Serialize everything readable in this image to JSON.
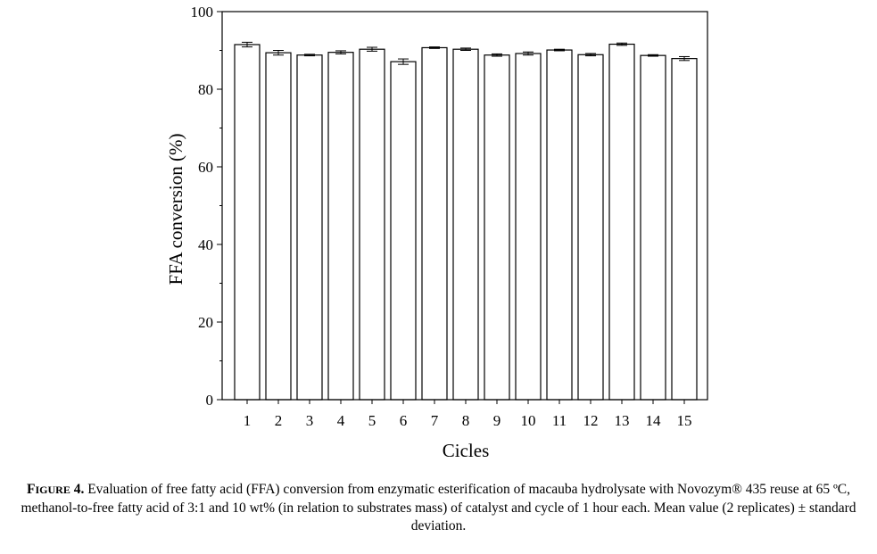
{
  "chart_data": {
    "type": "bar",
    "categories": [
      "1",
      "2",
      "3",
      "4",
      "5",
      "6",
      "7",
      "8",
      "9",
      "10",
      "11",
      "12",
      "13",
      "14",
      "15"
    ],
    "values": [
      91.5,
      89.4,
      88.8,
      89.5,
      90.3,
      87.1,
      90.7,
      90.3,
      88.8,
      89.2,
      90.1,
      88.9,
      91.6,
      88.7,
      87.9
    ],
    "errors": [
      0.6,
      0.6,
      0.2,
      0.4,
      0.5,
      0.7,
      0.2,
      0.3,
      0.3,
      0.4,
      0.2,
      0.3,
      0.3,
      0.2,
      0.5
    ],
    "xlabel": "Cicles",
    "ylabel": "FFA conversion (%)",
    "ylim": [
      0,
      100
    ],
    "yticks": [
      0,
      20,
      40,
      60,
      80,
      100
    ],
    "grid": false,
    "bar_fill": "#ffffff",
    "bar_stroke": "#000000"
  },
  "caption": {
    "label_first": "F",
    "label_rest": "igure",
    "label_num": " 4.",
    "text": " Evaluation of free fatty acid (FFA) conversion from enzymatic esterification of macauba hydrolysate with Novozym® 435 reuse at 65 ºC, methanol-to-free fatty acid of 3:1 and 10 wt% (in relation to substrates mass) of catalyst and cycle of 1 hour each.  Mean value (2 replicates) ± standard deviation."
  }
}
